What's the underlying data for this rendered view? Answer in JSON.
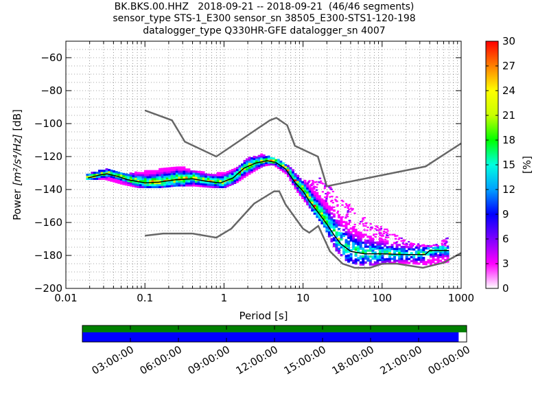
{
  "title_lines": [
    "BK.BKS.00.HHZ   2018-09-21 -- 2018-09-21  (46/46 segments)",
    "sensor_type STS-1_E300 sensor_sn 38505_E300-STS1-120-198",
    "datalogger_type Q330HR-GFE datalogger_sn 4007"
  ],
  "chart_data": [
    {
      "type": "heatmap",
      "xlabel": "Period [s]",
      "ylabel_prefix": "Power ",
      "ylabel_units": "[m²/s⁴/Hz]",
      "ylabel_suffix": " [dB]",
      "xscale": "log",
      "xlim": [
        0.01,
        1000
      ],
      "ylim": [
        -200,
        -50
      ],
      "xticks": [
        0.01,
        0.1,
        1,
        10,
        100,
        1000
      ],
      "xtick_labels": [
        "0.01",
        "0.1",
        "1",
        "10",
        "100",
        "1000"
      ],
      "yticks": [
        -200,
        -180,
        -160,
        -140,
        -120,
        -100,
        -80,
        -60
      ],
      "ytick_labels": [
        "−200",
        "−180",
        "−160",
        "−140",
        "−120",
        "−100",
        "−80",
        "−60"
      ],
      "grid": "minor dotted vertical and horizontal",
      "colorbar": {
        "label": "[%]",
        "range": [
          0,
          30
        ],
        "ticks": [
          0,
          3,
          6,
          9,
          12,
          15,
          18,
          21,
          24,
          27,
          30
        ],
        "colors": [
          "#ffffff",
          "#ff00ff",
          "#7d00ff",
          "#0000ff",
          "#00a0ff",
          "#00ffe0",
          "#00ff00",
          "#c8ff00",
          "#ffff00",
          "#ff8000",
          "#ff0000"
        ]
      },
      "noise_model_high": {
        "name": "NHNM",
        "color": "#666666",
        "points": [
          [
            0.1,
            -92
          ],
          [
            0.22,
            -98
          ],
          [
            0.32,
            -111
          ],
          [
            0.8,
            -120
          ],
          [
            3.8,
            -98
          ],
          [
            4.6,
            -96.5
          ],
          [
            6.3,
            -101
          ],
          [
            7.9,
            -113.5
          ],
          [
            15.4,
            -120
          ],
          [
            20,
            -138
          ],
          [
            354.8,
            -126
          ],
          [
            1000,
            -112
          ]
        ]
      },
      "noise_model_low": {
        "name": "NLNM",
        "color": "#666666",
        "points": [
          [
            0.1,
            -168
          ],
          [
            0.17,
            -166.7
          ],
          [
            0.4,
            -166.7
          ],
          [
            0.8,
            -169.2
          ],
          [
            1.24,
            -163.7
          ],
          [
            2.4,
            -148.6
          ],
          [
            4.3,
            -141.1
          ],
          [
            5,
            -141.1
          ],
          [
            6,
            -149
          ],
          [
            10,
            -163.8
          ],
          [
            12,
            -166.2
          ],
          [
            15.6,
            -162.1
          ],
          [
            21.9,
            -177.5
          ],
          [
            31.6,
            -185
          ],
          [
            45,
            -187.5
          ],
          [
            70,
            -187.5
          ],
          [
            101,
            -185
          ],
          [
            154,
            -185
          ],
          [
            328,
            -187.5
          ],
          [
            600,
            -184.4
          ],
          [
            1000,
            -178.5
          ]
        ]
      },
      "median_series": {
        "color": "#000000",
        "points": [
          [
            0.019,
            -133
          ],
          [
            0.028,
            -131
          ],
          [
            0.033,
            -130.5
          ],
          [
            0.045,
            -132
          ],
          [
            0.06,
            -134
          ],
          [
            0.1,
            -136
          ],
          [
            0.15,
            -135.5
          ],
          [
            0.25,
            -134
          ],
          [
            0.4,
            -133.5
          ],
          [
            0.6,
            -135
          ],
          [
            0.9,
            -136
          ],
          [
            1.3,
            -133
          ],
          [
            1.8,
            -127
          ],
          [
            2.5,
            -124
          ],
          [
            3.5,
            -122.5
          ],
          [
            4.5,
            -123.5
          ],
          [
            6,
            -127.5
          ],
          [
            8,
            -136
          ],
          [
            10,
            -141
          ],
          [
            12,
            -147
          ],
          [
            15,
            -153
          ],
          [
            20,
            -161
          ],
          [
            25,
            -168
          ],
          [
            30,
            -173
          ],
          [
            40,
            -177.5
          ],
          [
            60,
            -179
          ],
          [
            100,
            -179
          ],
          [
            200,
            -179.5
          ],
          [
            350,
            -179.5
          ],
          [
            400,
            -177
          ],
          [
            700,
            -177
          ]
        ]
      },
      "envelopes": {
        "main_upper": [
          [
            0.018,
            -131
          ],
          [
            0.03,
            -128
          ],
          [
            0.05,
            -131
          ],
          [
            0.08,
            -130
          ],
          [
            0.15,
            -128
          ],
          [
            0.25,
            -126
          ],
          [
            0.4,
            -129
          ],
          [
            0.7,
            -131
          ],
          [
            1.0,
            -130
          ],
          [
            1.4,
            -127
          ],
          [
            2,
            -121
          ],
          [
            3,
            -119
          ],
          [
            4,
            -121
          ],
          [
            6,
            -125
          ],
          [
            8,
            -131
          ],
          [
            10,
            -136
          ],
          [
            13,
            -140
          ],
          [
            18,
            -147
          ],
          [
            25,
            -154
          ],
          [
            35,
            -160
          ],
          [
            50,
            -166
          ],
          [
            80,
            -170
          ],
          [
            120,
            -172
          ],
          [
            200,
            -175
          ],
          [
            400,
            -175
          ],
          [
            700,
            -175
          ]
        ],
        "main_lower": [
          [
            0.018,
            -134
          ],
          [
            0.03,
            -134
          ],
          [
            0.05,
            -137
          ],
          [
            0.08,
            -139
          ],
          [
            0.15,
            -139
          ],
          [
            0.25,
            -138
          ],
          [
            0.4,
            -138
          ],
          [
            0.7,
            -139
          ],
          [
            1.0,
            -139
          ],
          [
            1.4,
            -136
          ],
          [
            2,
            -131
          ],
          [
            3,
            -126
          ],
          [
            4,
            -125
          ],
          [
            6,
            -131
          ],
          [
            8,
            -141
          ],
          [
            10,
            -147
          ],
          [
            13,
            -154
          ],
          [
            18,
            -163
          ],
          [
            25,
            -177
          ],
          [
            35,
            -184
          ],
          [
            50,
            -186
          ],
          [
            80,
            -186
          ],
          [
            120,
            -185
          ],
          [
            200,
            -185
          ],
          [
            400,
            -186
          ],
          [
            700,
            -184
          ]
        ],
        "scatter_upper": [
          [
            10,
            -135
          ],
          [
            13,
            -135
          ],
          [
            16,
            -133
          ],
          [
            20,
            -137
          ],
          [
            30,
            -145
          ],
          [
            50,
            -155
          ],
          [
            80,
            -162
          ],
          [
            120,
            -165
          ],
          [
            200,
            -172
          ],
          [
            400,
            -175
          ],
          [
            700,
            -169
          ]
        ]
      }
    },
    {
      "type": "timeline",
      "tick_labels": [
        "03:00:00",
        "06:00:00",
        "09:00:00",
        "12:00:00",
        "15:00:00",
        "18:00:00",
        "21:00:00",
        "00:00:00"
      ],
      "span_hours": [
        0,
        24
      ],
      "data_bar": {
        "color": "#008000",
        "from_hours": 0,
        "to_hours": 24
      },
      "segment_bar": {
        "color": "#0000ff",
        "from_hours": 0,
        "to_hours": 23.5
      }
    }
  ]
}
